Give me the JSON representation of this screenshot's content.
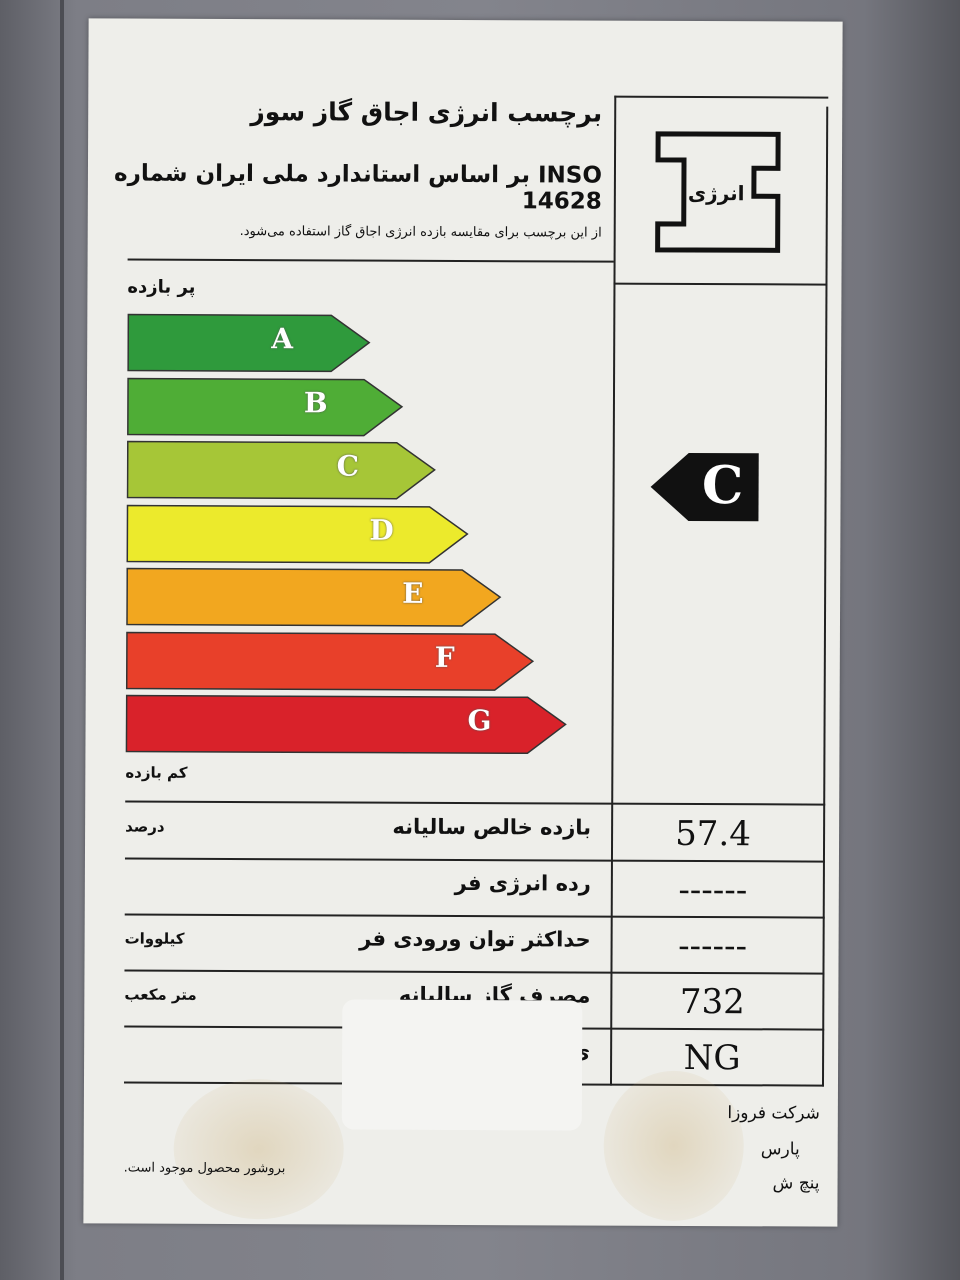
{
  "label": {
    "title": "برچسب انرژی اجاق گاز سوز",
    "subtitle": "INSO بر اساس استاندارد ملی ایران شماره 14628",
    "note": "از این برچسب برای مقایسه بازده انرژی اجاق گاز استفاده می‌شود.",
    "logo_text": "انرژی",
    "high_efficiency": "پر بازده",
    "low_efficiency": "کم بازده",
    "classes": [
      {
        "letter": "A",
        "color": "#2f9a3c"
      },
      {
        "letter": "B",
        "color": "#4fad36"
      },
      {
        "letter": "C",
        "color": "#a6c637"
      },
      {
        "letter": "D",
        "color": "#ecea2c"
      },
      {
        "letter": "E",
        "color": "#f2a71f"
      },
      {
        "letter": "F",
        "color": "#e8402a"
      },
      {
        "letter": "G",
        "color": "#d9222a"
      }
    ],
    "rating": "C",
    "rows": [
      {
        "label": "بازده خالص سالیانه",
        "unit": "درصد",
        "value": "57.4"
      },
      {
        "label": "رده انرژی فر",
        "unit": "",
        "value": "------"
      },
      {
        "label": "حداکثر توان ورودی فر",
        "unit": "کیلووات",
        "value": "------"
      },
      {
        "label": "مصرف گاز سالیانه",
        "unit": "متر مکعب",
        "value": "732"
      },
      {
        "label": "ی",
        "unit": "",
        "value": "NG"
      }
    ],
    "manufacturer_lines": [
      "شرکت فروزا",
      "پارس",
      "پنچ ش"
    ],
    "brochure_note": "بروشور محصول موجود است."
  }
}
